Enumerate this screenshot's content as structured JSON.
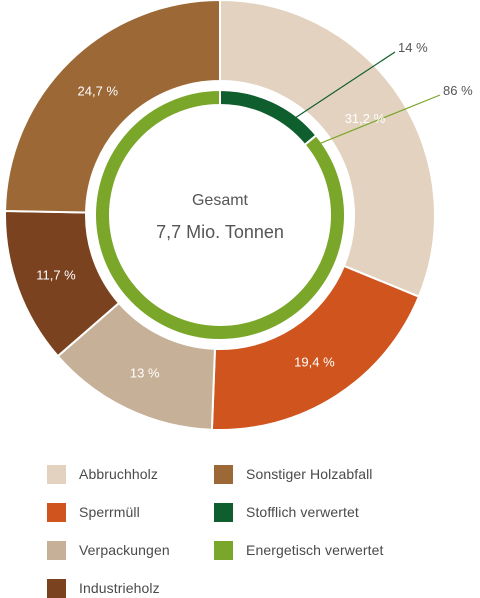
{
  "chart_data": {
    "type": "donut",
    "center_label": {
      "line1": "Gesamt",
      "line2": "7,7 Mio. Tonnen"
    },
    "outer_ring": {
      "categories": [
        "Abbruchholz",
        "Sperrmüll",
        "Verpackungen",
        "Industrieholz",
        "Sonstiger Holzabfall"
      ],
      "values": [
        31.2,
        19.4,
        13,
        11.7,
        24.7
      ],
      "labels": [
        "31,2 %",
        "19,4 %",
        "13 %",
        "11,7 %",
        "24,7 %"
      ],
      "colors": [
        "#e3d2bf",
        "#d0541d",
        "#c6b097",
        "#7b4220",
        "#9b6836"
      ]
    },
    "inner_ring": {
      "categories": [
        "Stofflich verwertet",
        "Energetisch verwertet"
      ],
      "values": [
        14,
        86
      ],
      "labels": [
        "14 %",
        "86 %"
      ],
      "colors": [
        "#0f5e2e",
        "#7aa62a"
      ]
    },
    "legend": [
      {
        "label": "Abbruchholz",
        "color": "#e3d2bf"
      },
      {
        "label": "Sperrmüll",
        "color": "#d0541d"
      },
      {
        "label": "Verpackungen",
        "color": "#c6b097"
      },
      {
        "label": "Industrieholz",
        "color": "#7b4220"
      },
      {
        "label": "Sonstiger Holzabfall",
        "color": "#9b6836"
      },
      {
        "label": "Stofflich verwertet",
        "color": "#0f5e2e"
      },
      {
        "label": "Energetisch verwertet",
        "color": "#7aa62a"
      }
    ]
  }
}
